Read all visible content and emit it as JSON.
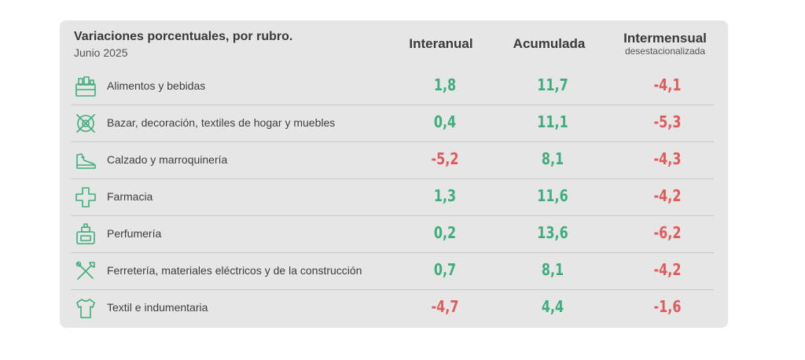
{
  "table": {
    "title": "Variaciones porcentuales, por rubro.",
    "subtitle": "Junio 2025",
    "columns": [
      {
        "main": "Interanual",
        "sub": ""
      },
      {
        "main": "Acumulada",
        "sub": ""
      },
      {
        "main": "Intermensual",
        "sub": "desestacionalizada"
      }
    ],
    "colors": {
      "positive": "#3fae7c",
      "negative": "#e05b5b",
      "icon": "#3fae7c"
    }
  },
  "chart_data": {
    "type": "table",
    "title": "Variaciones porcentuales, por rubro.",
    "subtitle": "Junio 2025",
    "columns": [
      "Interanual",
      "Acumulada",
      "Intermensual desestacionalizada"
    ],
    "rows": [
      {
        "label": "Alimentos y bebidas",
        "icon": "grocery-icon",
        "values": [
          "1,8",
          "11,7",
          "-4,1"
        ]
      },
      {
        "label": "Bazar, decoración, textiles de hogar y muebles",
        "icon": "tableware-icon",
        "values": [
          "0,4",
          "11,1",
          "-5,3"
        ]
      },
      {
        "label": "Calzado y marroquinería",
        "icon": "shoe-icon",
        "values": [
          "-5,2",
          "8,1",
          "-4,3"
        ]
      },
      {
        "label": "Farmacia",
        "icon": "pharmacy-cross-icon",
        "values": [
          "1,3",
          "11,6",
          "-4,2"
        ]
      },
      {
        "label": "Perfumería",
        "icon": "perfume-icon",
        "values": [
          "0,2",
          "13,6",
          "-6,2"
        ]
      },
      {
        "label": "Ferretería, materiales eléctricos y de la construcción",
        "icon": "tools-icon",
        "values": [
          "0,7",
          "8,1",
          "-4,2"
        ]
      },
      {
        "label": "Textil e indumentaria",
        "icon": "shirt-icon",
        "values": [
          "-4,7",
          "4,4",
          "-1,6"
        ]
      }
    ]
  }
}
